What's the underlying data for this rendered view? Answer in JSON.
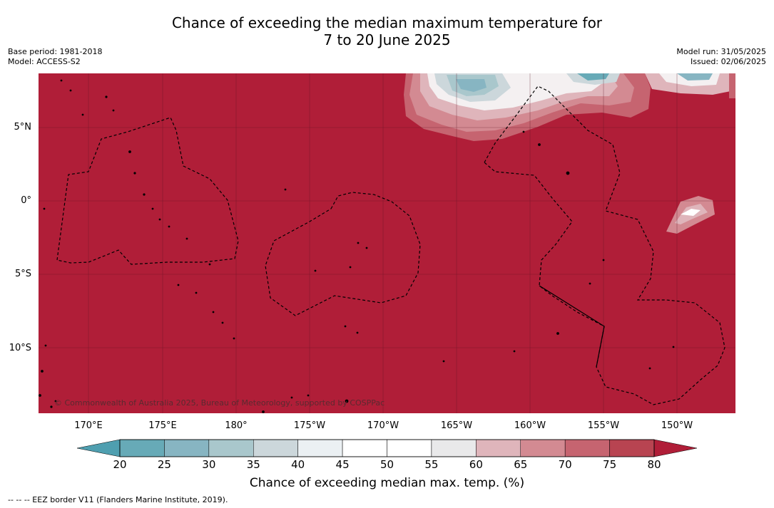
{
  "title": {
    "line1": "Chance of exceeding the median maximum temperature for",
    "line2": "7 to 20 June 2025"
  },
  "meta": {
    "base_period": "Base period: 1981-2018",
    "model": "Model: ACCESS-S2",
    "model_run": "Model run: 31/05/2025",
    "issued": "Issued: 02/06/2025"
  },
  "map": {
    "lat_labels": [
      "5°N",
      "0°",
      "5°S",
      "10°S"
    ],
    "lon_labels": [
      "170°E",
      "175°E",
      "180°",
      "175°W",
      "170°W",
      "165°W",
      "160°W",
      "155°W",
      "150°W"
    ],
    "copyright": "© Commonwealth of Australia 2025, Bureau of Meteorology, supported by COSPPac",
    "colors": {
      "ocean_high": "#b01e38",
      "land_coast": "#000000",
      "grid": "#5a1020",
      "eez": "#000000"
    }
  },
  "colorbar": {
    "ticks": [
      "20",
      "25",
      "30",
      "35",
      "40",
      "45",
      "50",
      "55",
      "60",
      "65",
      "70",
      "75",
      "80"
    ],
    "colors": [
      "#67aab7",
      "#87b5c2",
      "#a9c7cc",
      "#ccd7db",
      "#ebf0f3",
      "#ffffff",
      "#ffffff",
      "#e9e9ea",
      "#dfb5bb",
      "#d38a92",
      "#c66470",
      "#b84451"
    ],
    "under_color": "#4f9fb0",
    "over_color": "#b01e38",
    "label": "Chance of exceeding median max. temp. (%)"
  },
  "footnote": "--  --  -- EEZ border V11 (Flanders Marine Institute, 2019)."
}
